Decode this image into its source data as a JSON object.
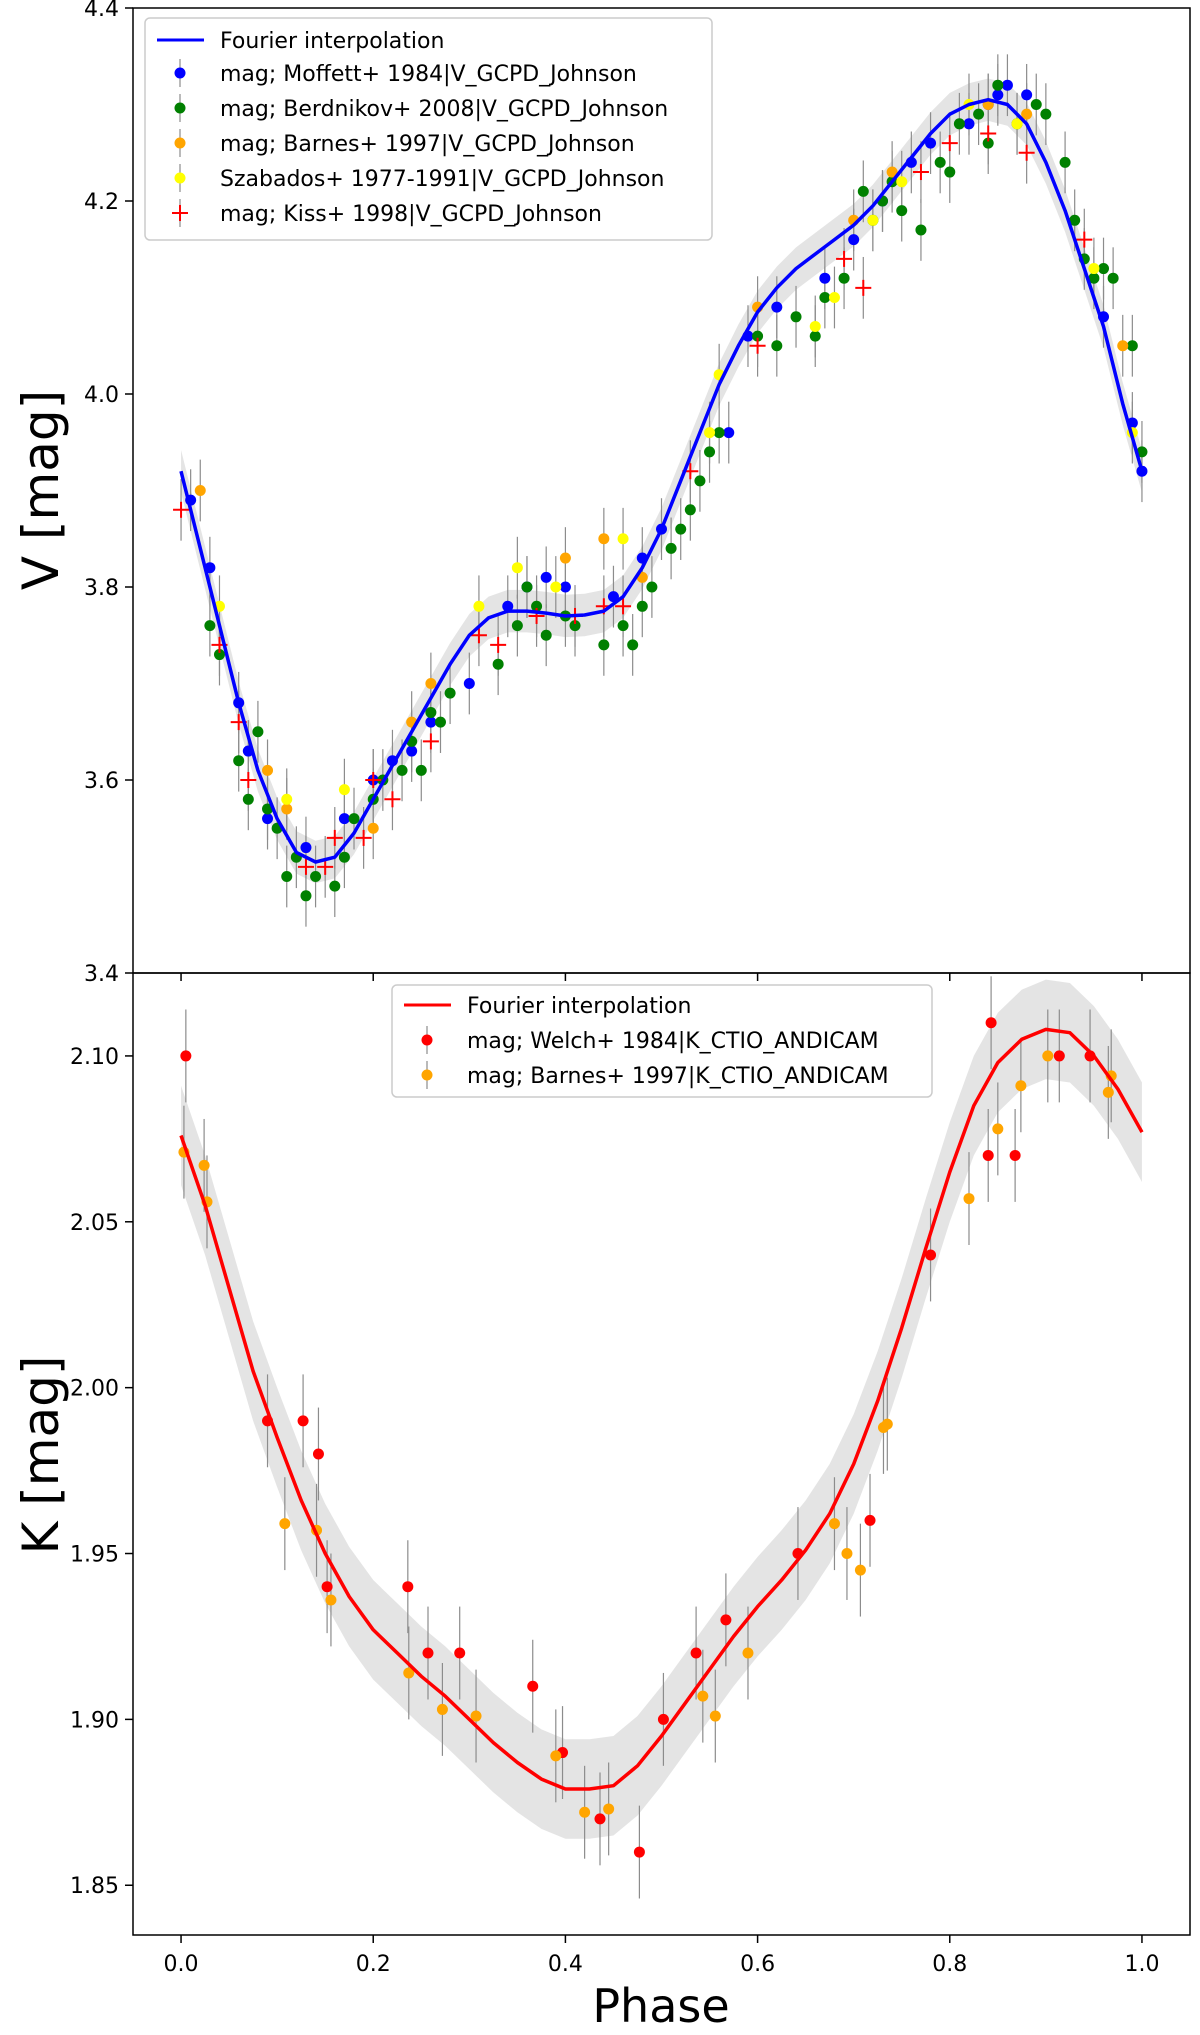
{
  "chart_data": [
    {
      "type": "scatter",
      "id": "v_panel",
      "xlabel": "",
      "ylabel": "V [mag]",
      "xlim": [
        -0.05,
        1.05
      ],
      "ylim": [
        3.4,
        4.4
      ],
      "yticks": [
        "3.4",
        "3.6",
        "3.8",
        "4.0",
        "4.2",
        "4.4"
      ],
      "ytick_values": [
        3.4,
        3.6,
        3.8,
        4.0,
        4.2,
        4.4
      ],
      "legend_position": "top-left",
      "fit": {
        "label": "Fourier interpolation",
        "color": "#0000ff",
        "x": [
          0.0,
          0.02,
          0.04,
          0.06,
          0.08,
          0.1,
          0.12,
          0.14,
          0.16,
          0.18,
          0.2,
          0.22,
          0.24,
          0.26,
          0.28,
          0.3,
          0.32,
          0.34,
          0.36,
          0.38,
          0.4,
          0.42,
          0.44,
          0.46,
          0.48,
          0.5,
          0.52,
          0.54,
          0.56,
          0.58,
          0.6,
          0.62,
          0.64,
          0.66,
          0.68,
          0.7,
          0.72,
          0.74,
          0.76,
          0.78,
          0.8,
          0.82,
          0.84,
          0.86,
          0.88,
          0.9,
          0.92,
          0.94,
          0.96,
          0.98,
          1.0
        ],
        "y": [
          3.92,
          3.84,
          3.76,
          3.68,
          3.61,
          3.56,
          3.525,
          3.515,
          3.52,
          3.545,
          3.58,
          3.615,
          3.65,
          3.685,
          3.72,
          3.75,
          3.768,
          3.775,
          3.775,
          3.773,
          3.77,
          3.771,
          3.775,
          3.79,
          3.82,
          3.86,
          3.91,
          3.96,
          4.01,
          4.05,
          4.085,
          4.11,
          4.13,
          4.145,
          4.16,
          4.175,
          4.195,
          4.22,
          4.245,
          4.27,
          4.29,
          4.3,
          4.305,
          4.3,
          4.28,
          4.24,
          4.19,
          4.13,
          4.07,
          3.99,
          3.92
        ],
        "band_halfwidth": 0.022
      },
      "series": [
        {
          "name": "mag; Moffett+ 1984|V_GCPD_Johnson",
          "color": "#0000ff",
          "marker": "dot",
          "x": [
            0.01,
            0.03,
            0.06,
            0.07,
            0.09,
            0.13,
            0.17,
            0.2,
            0.22,
            0.24,
            0.26,
            0.3,
            0.34,
            0.36,
            0.38,
            0.4,
            0.45,
            0.48,
            0.5,
            0.57,
            0.59,
            0.62,
            0.67,
            0.7,
            0.73,
            0.76,
            0.78,
            0.82,
            0.84,
            0.85,
            0.86,
            0.88,
            0.96,
            0.99,
            1.0
          ],
          "y": [
            3.89,
            3.82,
            3.68,
            3.63,
            3.56,
            3.53,
            3.56,
            3.6,
            3.62,
            3.63,
            3.66,
            3.7,
            3.78,
            3.8,
            3.81,
            3.8,
            3.79,
            3.83,
            3.86,
            3.96,
            4.06,
            4.09,
            4.12,
            4.16,
            4.2,
            4.24,
            4.26,
            4.28,
            4.3,
            4.31,
            4.32,
            4.31,
            4.08,
            3.97,
            3.92
          ]
        },
        {
          "name": "mag; Berdnikov+ 2008|V_GCPD_Johnson",
          "color": "#008000",
          "marker": "dot",
          "x": [
            0.03,
            0.04,
            0.06,
            0.07,
            0.08,
            0.09,
            0.1,
            0.11,
            0.12,
            0.13,
            0.14,
            0.16,
            0.17,
            0.18,
            0.2,
            0.21,
            0.23,
            0.24,
            0.25,
            0.26,
            0.27,
            0.28,
            0.33,
            0.35,
            0.36,
            0.37,
            0.38,
            0.4,
            0.41,
            0.44,
            0.46,
            0.47,
            0.48,
            0.49,
            0.51,
            0.52,
            0.53,
            0.54,
            0.55,
            0.56,
            0.6,
            0.62,
            0.64,
            0.66,
            0.67,
            0.69,
            0.71,
            0.72,
            0.73,
            0.74,
            0.75,
            0.77,
            0.79,
            0.8,
            0.81,
            0.83,
            0.84,
            0.85,
            0.87,
            0.89,
            0.9,
            0.92,
            0.93,
            0.94,
            0.95,
            0.96,
            0.97,
            0.99,
            1.0
          ],
          "y": [
            3.76,
            3.73,
            3.62,
            3.58,
            3.65,
            3.57,
            3.55,
            3.5,
            3.52,
            3.48,
            3.5,
            3.49,
            3.52,
            3.56,
            3.58,
            3.6,
            3.61,
            3.64,
            3.61,
            3.67,
            3.66,
            3.69,
            3.72,
            3.76,
            3.8,
            3.78,
            3.75,
            3.77,
            3.76,
            3.74,
            3.76,
            3.74,
            3.78,
            3.8,
            3.84,
            3.86,
            3.88,
            3.91,
            3.94,
            3.96,
            4.06,
            4.05,
            4.08,
            4.06,
            4.1,
            4.12,
            4.21,
            4.18,
            4.2,
            4.22,
            4.19,
            4.17,
            4.24,
            4.23,
            4.28,
            4.29,
            4.26,
            4.32,
            4.28,
            4.3,
            4.29,
            4.24,
            4.18,
            4.14,
            4.12,
            4.13,
            4.12,
            4.05,
            3.94
          ]
        },
        {
          "name": "mag; Barnes+ 1997|V_GCPD_Johnson",
          "color": "#ffa500",
          "marker": "dot",
          "x": [
            0.02,
            0.09,
            0.11,
            0.2,
            0.24,
            0.26,
            0.4,
            0.44,
            0.48,
            0.6,
            0.7,
            0.74,
            0.84,
            0.88,
            0.98
          ],
          "y": [
            3.9,
            3.61,
            3.57,
            3.55,
            3.66,
            3.7,
            3.83,
            3.85,
            3.81,
            4.09,
            4.18,
            4.23,
            4.3,
            4.29,
            4.05
          ]
        },
        {
          "name": "Szabados+ 1977-1991|V_GCPD_Johnson",
          "color": "#ffff00",
          "marker": "dot",
          "x": [
            0.04,
            0.11,
            0.17,
            0.31,
            0.35,
            0.39,
            0.46,
            0.55,
            0.56,
            0.66,
            0.68,
            0.72,
            0.75,
            0.82,
            0.87,
            0.95,
            0.99
          ],
          "y": [
            3.78,
            3.58,
            3.59,
            3.78,
            3.82,
            3.8,
            3.85,
            3.96,
            4.02,
            4.07,
            4.1,
            4.18,
            4.22,
            4.3,
            4.28,
            4.13,
            3.96
          ]
        },
        {
          "name": "mag; Kiss+ 1998|V_GCPD_Johnson",
          "color": "#ff0000",
          "marker": "plus",
          "x": [
            0.0,
            0.04,
            0.06,
            0.07,
            0.13,
            0.15,
            0.16,
            0.19,
            0.2,
            0.22,
            0.26,
            0.31,
            0.33,
            0.37,
            0.41,
            0.44,
            0.46,
            0.53,
            0.6,
            0.69,
            0.71,
            0.77,
            0.8,
            0.84,
            0.88,
            0.94
          ],
          "y": [
            3.88,
            3.74,
            3.66,
            3.6,
            3.51,
            3.51,
            3.54,
            3.54,
            3.6,
            3.58,
            3.64,
            3.75,
            3.74,
            3.77,
            3.77,
            3.78,
            3.78,
            3.92,
            4.05,
            4.14,
            4.11,
            4.23,
            4.26,
            4.27,
            4.25,
            4.16
          ]
        }
      ]
    },
    {
      "type": "scatter",
      "id": "k_panel",
      "xlabel": "Phase",
      "ylabel": "K [mag]",
      "xlim": [
        -0.05,
        1.05
      ],
      "ylim": [
        1.835,
        2.125
      ],
      "yticks": [
        "1.85",
        "1.90",
        "1.95",
        "2.00",
        "2.05",
        "2.10"
      ],
      "ytick_values": [
        1.85,
        1.9,
        1.95,
        2.0,
        2.05,
        2.1
      ],
      "xticks": [
        "0.0",
        "0.2",
        "0.4",
        "0.6",
        "0.8",
        "1.0"
      ],
      "xtick_values": [
        0.0,
        0.2,
        0.4,
        0.6,
        0.8,
        1.0
      ],
      "legend_position": "top-center",
      "fit": {
        "label": "Fourier interpolation",
        "color": "#ff0000",
        "x": [
          0.0,
          0.025,
          0.05,
          0.075,
          0.1,
          0.125,
          0.15,
          0.175,
          0.2,
          0.225,
          0.25,
          0.275,
          0.3,
          0.325,
          0.35,
          0.375,
          0.4,
          0.425,
          0.45,
          0.475,
          0.5,
          0.525,
          0.55,
          0.575,
          0.6,
          0.625,
          0.65,
          0.675,
          0.7,
          0.725,
          0.75,
          0.775,
          0.8,
          0.825,
          0.85,
          0.875,
          0.9,
          0.925,
          0.95,
          0.975,
          1.0
        ],
        "y": [
          2.076,
          2.055,
          2.03,
          2.005,
          1.985,
          1.966,
          1.95,
          1.937,
          1.927,
          1.92,
          1.913,
          1.907,
          1.9,
          1.893,
          1.887,
          1.882,
          1.879,
          1.879,
          1.88,
          1.886,
          1.895,
          1.905,
          1.915,
          1.925,
          1.934,
          1.942,
          1.951,
          1.962,
          1.977,
          1.996,
          2.018,
          2.042,
          2.065,
          2.085,
          2.098,
          2.105,
          2.108,
          2.107,
          2.1,
          2.09,
          2.077
        ],
        "band_halfwidth": 0.015
      },
      "series": [
        {
          "name": "mag; Welch+ 1984|K_CTIO_ANDICAM",
          "color": "#ff0000",
          "marker": "dot",
          "x": [
            0.005,
            0.09,
            0.127,
            0.143,
            0.152,
            0.236,
            0.257,
            0.29,
            0.366,
            0.397,
            0.436,
            0.477,
            0.502,
            0.536,
            0.567,
            0.642,
            0.717,
            0.78,
            0.84,
            0.843,
            0.868,
            0.914,
            0.946
          ],
          "y": [
            2.1,
            1.99,
            1.99,
            1.98,
            1.94,
            1.94,
            1.92,
            1.92,
            1.91,
            1.89,
            1.87,
            1.86,
            1.9,
            1.92,
            1.93,
            1.95,
            1.96,
            2.04,
            2.07,
            2.11,
            2.07,
            2.1,
            2.1
          ]
        },
        {
          "name": "mag; Barnes+ 1997|K_CTIO_ANDICAM",
          "color": "#ffa500",
          "marker": "dot",
          "x": [
            0.003,
            0.024,
            0.027,
            0.108,
            0.141,
            0.156,
            0.237,
            0.272,
            0.307,
            0.39,
            0.42,
            0.445,
            0.543,
            0.556,
            0.59,
            0.68,
            0.693,
            0.707,
            0.731,
            0.735,
            0.82,
            0.85,
            0.874,
            0.902,
            0.965,
            0.968
          ],
          "y": [
            2.071,
            2.067,
            2.056,
            1.959,
            1.957,
            1.936,
            1.914,
            1.903,
            1.901,
            1.889,
            1.872,
            1.873,
            1.907,
            1.901,
            1.92,
            1.959,
            1.95,
            1.945,
            1.988,
            1.989,
            2.057,
            2.078,
            2.091,
            2.1,
            2.089,
            2.094
          ]
        }
      ]
    }
  ]
}
